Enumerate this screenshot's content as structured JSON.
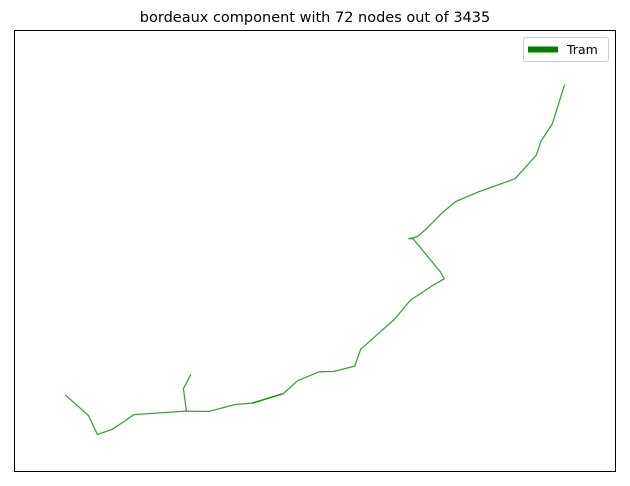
{
  "chart_data": {
    "type": "line",
    "title": "bordeaux component with 72 nodes out of 3435",
    "xlabel": "",
    "ylabel": "",
    "xlim": [
      0,
      1000
    ],
    "ylim": [
      0,
      1000
    ],
    "axis_ticks": false,
    "grid": false,
    "legend_placement": "upper right",
    "series": [
      {
        "name": "Tram",
        "color": "#008000",
        "alpha": 0.75,
        "segments": [
          [
            [
              85,
              173
            ],
            [
              123,
              127
            ],
            [
              138,
              84
            ],
            [
              163,
              96
            ],
            [
              199,
              129
            ],
            [
              284,
              137
            ],
            [
              323,
              136
            ],
            [
              367,
              152
            ],
            [
              395,
              155
            ],
            [
              447,
              176
            ],
            [
              471,
              206
            ],
            [
              507,
              226
            ],
            [
              532,
              227
            ],
            [
              566,
              239
            ],
            [
              576,
              277
            ],
            [
              609,
              317
            ],
            [
              632,
              345
            ],
            [
              659,
              389
            ],
            [
              697,
              423
            ],
            [
              715,
              437
            ],
            [
              709,
              452
            ],
            [
              677,
              505
            ],
            [
              663,
              528
            ],
            [
              656,
              528
            ],
            [
              671,
              533
            ],
            [
              685,
              550
            ],
            [
              712,
              587
            ],
            [
              734,
              612
            ],
            [
              772,
              634
            ],
            [
              833,
              664
            ],
            [
              868,
              717
            ],
            [
              876,
              749
            ],
            [
              895,
              789
            ],
            [
              915,
              876
            ]
          ],
          [
            [
              286,
              137
            ],
            [
              281,
              188
            ],
            [
              293,
              219
            ]
          ],
          [
            [
              397,
              155
            ],
            [
              445,
              176
            ]
          ]
        ]
      }
    ]
  }
}
